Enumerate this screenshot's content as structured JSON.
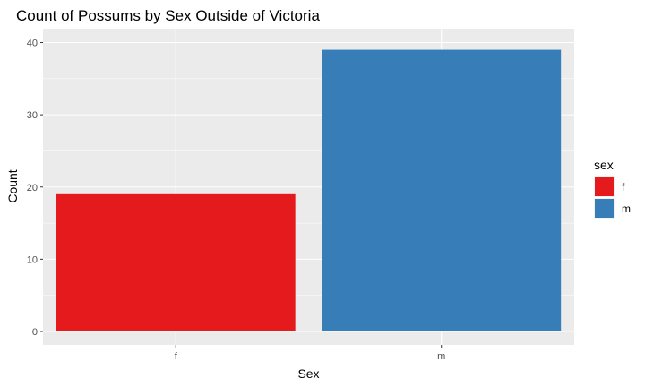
{
  "chart_data": {
    "type": "bar",
    "title": "Count of Possums by Sex Outside of Victoria",
    "xlabel": "Sex",
    "ylabel": "Count",
    "categories": [
      "f",
      "m"
    ],
    "values": [
      19,
      39
    ],
    "ylim": [
      0,
      41
    ],
    "yticks": [
      0,
      10,
      20,
      30,
      40
    ],
    "colors": [
      "#e41a1c",
      "#377eb8"
    ],
    "grid": true,
    "legend": {
      "title": "sex",
      "placement": "right",
      "entries": [
        "f",
        "m"
      ]
    }
  }
}
